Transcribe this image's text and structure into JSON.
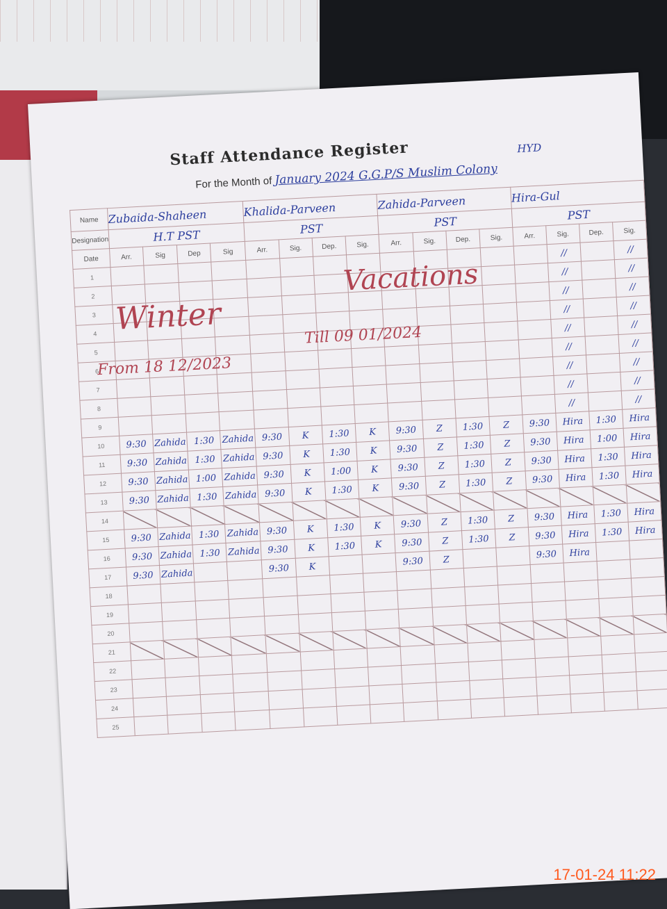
{
  "register": {
    "title": "Staff Attendance Register",
    "month_label": "For the Month of",
    "month_value": "January 2024 G.G.P/S Muslim Colony",
    "location": "HYD",
    "name_label": "Name",
    "designation_label": "Designation",
    "date_label": "Date",
    "staff": [
      {
        "name": "Zubaida-Shaheen",
        "designation": "H.T PST",
        "cols": [
          "Arr.",
          "Sig",
          "Dep",
          "Sig"
        ]
      },
      {
        "name": "Khalida-Parveen",
        "designation": "PST",
        "cols": [
          "Arr.",
          "Sig.",
          "Dep.",
          "Sig."
        ]
      },
      {
        "name": "Zahida-Parveen",
        "designation": "PST",
        "cols": [
          "Arr.",
          "Sig.",
          "Dep.",
          "Sig."
        ]
      },
      {
        "name": "Hira-Gul",
        "designation": "PST",
        "cols": [
          "Arr.",
          "Sig.",
          "Dep.",
          "Sig."
        ]
      }
    ],
    "vacation_note": {
      "word1": "Winter",
      "word2": "Vacations",
      "from": "From 18 12/2023",
      "till": "Till 09 01/2024"
    },
    "ditto": "//",
    "holiday_rows": [
      14,
      21
    ],
    "rows": [
      {
        "date": "1"
      },
      {
        "date": "2"
      },
      {
        "date": "3"
      },
      {
        "date": "4"
      },
      {
        "date": "5"
      },
      {
        "date": "6"
      },
      {
        "date": "7"
      },
      {
        "date": "8"
      },
      {
        "date": "9"
      },
      {
        "date": "10",
        "cells": [
          "9:30",
          "Zahida",
          "1:30",
          "Zahida",
          "9:30",
          "K",
          "1:30",
          "K",
          "9:30",
          "Z",
          "1:30",
          "Z",
          "9:30",
          "Hira",
          "1:30",
          "Hira"
        ]
      },
      {
        "date": "11",
        "cells": [
          "9:30",
          "Zahida",
          "1:30",
          "Zahida",
          "9:30",
          "K",
          "1:30",
          "K",
          "9:30",
          "Z",
          "1:30",
          "Z",
          "9:30",
          "Hira",
          "1:00",
          "Hira"
        ]
      },
      {
        "date": "12",
        "cells": [
          "9:30",
          "Zahida",
          "1:00",
          "Zahida",
          "9:30",
          "K",
          "1:00",
          "K",
          "9:30",
          "Z",
          "1:30",
          "Z",
          "9:30",
          "Hira",
          "1:30",
          "Hira"
        ]
      },
      {
        "date": "13",
        "cells": [
          "9:30",
          "Zahida",
          "1:30",
          "Zahida",
          "9:30",
          "K",
          "1:30",
          "K",
          "9:30",
          "Z",
          "1:30",
          "Z",
          "9:30",
          "Hira",
          "1:30",
          "Hira"
        ]
      },
      {
        "date": "14"
      },
      {
        "date": "15",
        "cells": [
          "9:30",
          "Zahida",
          "1:30",
          "Zahida",
          "9:30",
          "K",
          "1:30",
          "K",
          "9:30",
          "Z",
          "1:30",
          "Z",
          "9:30",
          "Hira",
          "1:30",
          "Hira"
        ]
      },
      {
        "date": "16",
        "cells": [
          "9:30",
          "Zahida",
          "1:30",
          "Zahida",
          "9:30",
          "K",
          "1:30",
          "K",
          "9:30",
          "Z",
          "1:30",
          "Z",
          "9:30",
          "Hira",
          "1:30",
          "Hira"
        ]
      },
      {
        "date": "17",
        "cells": [
          "9:30",
          "Zahida",
          "",
          "",
          "9:30",
          "K",
          "",
          "",
          "9:30",
          "Z",
          "",
          "",
          "9:30",
          "Hira",
          "",
          ""
        ]
      },
      {
        "date": "18"
      },
      {
        "date": "19"
      },
      {
        "date": "20"
      },
      {
        "date": "21"
      },
      {
        "date": "22"
      },
      {
        "date": "23"
      },
      {
        "date": "24"
      },
      {
        "date": "25"
      }
    ]
  },
  "photo_timestamp": "17-01-24  11:22",
  "colors": {
    "ink": "#2d3f9e",
    "red_ink": "#b04452",
    "grid": "#b99a9e",
    "timestamp": "#ff5a1f"
  }
}
